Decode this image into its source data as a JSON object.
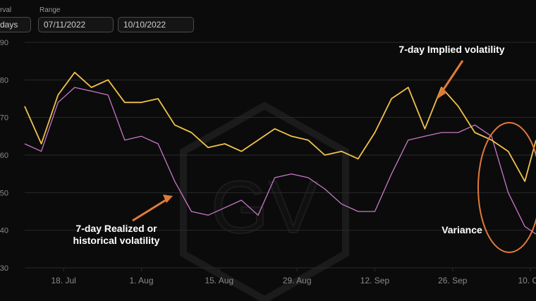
{
  "controls": {
    "interval_label": "rval",
    "interval_value": "days",
    "range_label": "Range",
    "range_start": "07/11/2022",
    "range_end": "10/10/2022"
  },
  "annotations": {
    "implied": "7-day Implied volatility",
    "realized_line1": "7-day Realized or",
    "realized_line2": "historical volatility",
    "variance": "Variance"
  },
  "colors": {
    "background": "#0b0b0b",
    "implied": "#f0c24b",
    "realized": "#c878c8",
    "annotation_accent": "#e07a3a",
    "gridline": "#2a2a2a",
    "tick": "#8a8a8a"
  },
  "chart_data": {
    "type": "line",
    "x_start": "2022-07-11",
    "x_end": "2022-10-11",
    "x_tick_labels": [
      "18. Jul",
      "1. Aug",
      "15. Aug",
      "29. Aug",
      "12. Sep",
      "26. Sep",
      "10. Oc"
    ],
    "y_tick_labels": [
      "90",
      "80",
      "70",
      "60",
      "50",
      "40",
      "30"
    ],
    "ylim": [
      30,
      90
    ],
    "grid": true,
    "series": [
      {
        "name": "7-day Implied volatility",
        "x": [
          "2022-07-11",
          "2022-07-14",
          "2022-07-17",
          "2022-07-20",
          "2022-07-23",
          "2022-07-26",
          "2022-07-29",
          "2022-08-01",
          "2022-08-04",
          "2022-08-07",
          "2022-08-10",
          "2022-08-13",
          "2022-08-16",
          "2022-08-19",
          "2022-08-22",
          "2022-08-25",
          "2022-08-28",
          "2022-08-31",
          "2022-09-03",
          "2022-09-06",
          "2022-09-09",
          "2022-09-12",
          "2022-09-15",
          "2022-09-18",
          "2022-09-21",
          "2022-09-24",
          "2022-09-27",
          "2022-09-30",
          "2022-10-03",
          "2022-10-06",
          "2022-10-09",
          "2022-10-11"
        ],
        "values": [
          73,
          63,
          76,
          82,
          78,
          80,
          74,
          74,
          75,
          68,
          66,
          62,
          63,
          61,
          64,
          67,
          65,
          64,
          60,
          61,
          59,
          66,
          75,
          78,
          67,
          78,
          73,
          66,
          64,
          61,
          53,
          64
        ]
      },
      {
        "name": "7-day Realized or historical volatility",
        "x": [
          "2022-07-11",
          "2022-07-14",
          "2022-07-17",
          "2022-07-20",
          "2022-07-23",
          "2022-07-26",
          "2022-07-29",
          "2022-08-01",
          "2022-08-04",
          "2022-08-07",
          "2022-08-10",
          "2022-08-13",
          "2022-08-16",
          "2022-08-19",
          "2022-08-22",
          "2022-08-25",
          "2022-08-28",
          "2022-08-31",
          "2022-09-03",
          "2022-09-06",
          "2022-09-09",
          "2022-09-12",
          "2022-09-15",
          "2022-09-18",
          "2022-09-21",
          "2022-09-24",
          "2022-09-27",
          "2022-09-30",
          "2022-10-03",
          "2022-10-06",
          "2022-10-09",
          "2022-10-11"
        ],
        "values": [
          63,
          61,
          74,
          78,
          77,
          76,
          64,
          65,
          63,
          53,
          45,
          44,
          46,
          48,
          44,
          54,
          55,
          54,
          51,
          47,
          45,
          45,
          55,
          64,
          65,
          66,
          66,
          68,
          65,
          50,
          41,
          39
        ]
      }
    ]
  }
}
